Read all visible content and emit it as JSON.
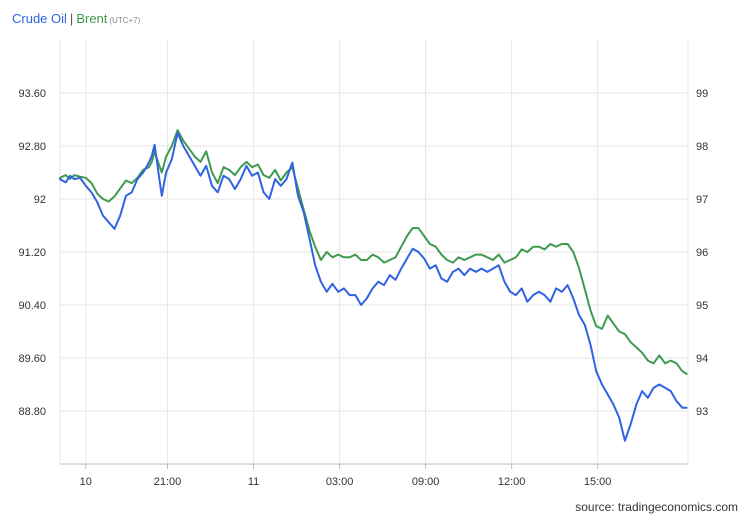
{
  "header": {
    "series1": "Crude Oil",
    "separator": "|",
    "series2": "Brent",
    "timezone": "(UTC+7)"
  },
  "source": "source: tradingeconomics.com",
  "colors": {
    "series1": "#2f63e3",
    "series2": "#3f9a4f",
    "grid": "#e6e6e6",
    "axis": "#bbbbbb"
  },
  "chart_data": {
    "type": "line",
    "grid": true,
    "x_ticks": [
      "10",
      "21:00",
      "11",
      "03:00",
      "09:00",
      "12:00",
      "15:00"
    ],
    "x_tick_positions": [
      1.8,
      7.5,
      13.5,
      19.5,
      25.5,
      31.5,
      37.5
    ],
    "x_range": [
      0,
      43.8
    ],
    "y_left": {
      "ticks": [
        "93.60",
        "92.80",
        "92",
        "91.20",
        "90.40",
        "89.60",
        "88.80"
      ],
      "tick_values": [
        93.6,
        92.8,
        92.0,
        91.2,
        90.4,
        89.6,
        88.8
      ],
      "range": [
        88.0,
        94.4
      ]
    },
    "y_right": {
      "ticks": [
        "99",
        "98",
        "97",
        "96",
        "95",
        "94",
        "93"
      ],
      "tick_values": [
        99,
        98,
        97,
        96,
        95,
        94,
        93
      ],
      "range": [
        92.0,
        100.0
      ]
    },
    "series": [
      {
        "name": "Crude Oil",
        "axis": "left",
        "x": [
          0,
          0.4,
          0.7,
          1.0,
          1.4,
          1.8,
          2.2,
          2.6,
          3.0,
          3.4,
          3.8,
          4.2,
          4.6,
          5.0,
          5.4,
          5.8,
          6.2,
          6.4,
          6.6,
          6.9,
          7.1,
          7.4,
          7.8,
          8.2,
          8.6,
          9.0,
          9.4,
          9.8,
          10.2,
          10.6,
          11.0,
          11.4,
          11.8,
          12.2,
          12.6,
          13.0,
          13.4,
          13.8,
          14.2,
          14.6,
          15.0,
          15.4,
          15.8,
          16.2,
          16.6,
          17.0,
          17.4,
          17.8,
          18.2,
          18.6,
          19.0,
          19.4,
          19.8,
          20.2,
          20.6,
          21.0,
          21.4,
          21.8,
          22.2,
          22.6,
          23.0,
          23.4,
          23.8,
          24.2,
          24.6,
          25.0,
          25.4,
          25.8,
          26.2,
          26.6,
          27.0,
          27.4,
          27.8,
          28.2,
          28.6,
          29.0,
          29.4,
          29.8,
          30.2,
          30.6,
          31.0,
          31.4,
          31.8,
          32.2,
          32.6,
          33.0,
          33.4,
          33.8,
          34.2,
          34.6,
          35.0,
          35.4,
          35.8,
          36.2,
          36.6,
          37.0,
          37.4,
          37.8,
          38.2,
          38.6,
          39.0,
          39.4,
          39.8,
          40.2,
          40.6,
          41.0,
          41.4,
          41.8,
          42.2,
          42.6,
          43.0,
          43.4,
          43.7
        ],
        "y": [
          92.3,
          92.25,
          92.35,
          92.3,
          92.32,
          92.2,
          92.1,
          91.95,
          91.75,
          91.65,
          91.55,
          91.75,
          92.05,
          92.1,
          92.3,
          92.4,
          92.55,
          92.65,
          92.82,
          92.35,
          92.05,
          92.4,
          92.6,
          93.0,
          92.8,
          92.65,
          92.5,
          92.35,
          92.5,
          92.2,
          92.1,
          92.35,
          92.3,
          92.15,
          92.3,
          92.5,
          92.35,
          92.4,
          92.1,
          92.0,
          92.3,
          92.2,
          92.3,
          92.55,
          92.05,
          91.8,
          91.4,
          91.0,
          90.75,
          90.6,
          90.72,
          90.6,
          90.65,
          90.55,
          90.55,
          90.4,
          90.5,
          90.65,
          90.75,
          90.7,
          90.85,
          90.78,
          90.95,
          91.1,
          91.25,
          91.2,
          91.1,
          90.95,
          91.0,
          90.8,
          90.75,
          90.9,
          90.95,
          90.85,
          90.95,
          90.9,
          90.95,
          90.9,
          90.95,
          91.0,
          90.75,
          90.6,
          90.55,
          90.65,
          90.45,
          90.55,
          90.6,
          90.55,
          90.45,
          90.65,
          90.6,
          90.7,
          90.5,
          90.25,
          90.1,
          89.8,
          89.4,
          89.2,
          89.05,
          88.9,
          88.7,
          88.35,
          88.6,
          88.9,
          89.1,
          89.0,
          89.15,
          89.2,
          89.15,
          89.1,
          88.95,
          88.85,
          88.85
        ]
      },
      {
        "name": "Brent",
        "axis": "right",
        "x": [
          0,
          0.4,
          0.7,
          1.0,
          1.4,
          1.8,
          2.2,
          2.6,
          3.0,
          3.4,
          3.8,
          4.2,
          4.6,
          5.0,
          5.4,
          5.8,
          6.2,
          6.4,
          6.6,
          6.9,
          7.1,
          7.4,
          7.8,
          8.2,
          8.6,
          9.0,
          9.4,
          9.8,
          10.2,
          10.6,
          11.0,
          11.4,
          11.8,
          12.2,
          12.6,
          13.0,
          13.4,
          13.8,
          14.2,
          14.6,
          15.0,
          15.4,
          15.8,
          16.2,
          16.6,
          17.0,
          17.4,
          17.8,
          18.2,
          18.6,
          19.0,
          19.4,
          19.8,
          20.2,
          20.6,
          21.0,
          21.4,
          21.8,
          22.2,
          22.6,
          23.0,
          23.4,
          23.8,
          24.2,
          24.6,
          25.0,
          25.4,
          25.8,
          26.2,
          26.6,
          27.0,
          27.4,
          27.8,
          28.2,
          28.6,
          29.0,
          29.4,
          29.8,
          30.2,
          30.6,
          31.0,
          31.4,
          31.8,
          32.2,
          32.6,
          33.0,
          33.4,
          33.8,
          34.2,
          34.6,
          35.0,
          35.4,
          35.8,
          36.2,
          36.6,
          37.0,
          37.4,
          37.8,
          38.2,
          38.6,
          39.0,
          39.4,
          39.8,
          40.2,
          40.6,
          41.0,
          41.4,
          41.8,
          42.2,
          42.6,
          43.0,
          43.4,
          43.7
        ],
        "y": [
          97.4,
          97.45,
          97.38,
          97.45,
          97.42,
          97.4,
          97.3,
          97.1,
          97.0,
          96.95,
          97.05,
          97.2,
          97.35,
          97.3,
          97.4,
          97.55,
          97.6,
          97.7,
          97.9,
          97.65,
          97.5,
          97.8,
          98.0,
          98.3,
          98.1,
          97.95,
          97.8,
          97.7,
          97.9,
          97.5,
          97.3,
          97.6,
          97.55,
          97.45,
          97.6,
          97.7,
          97.6,
          97.65,
          97.45,
          97.4,
          97.55,
          97.35,
          97.5,
          97.6,
          97.2,
          96.8,
          96.4,
          96.1,
          95.85,
          96.0,
          95.9,
          95.95,
          95.9,
          95.9,
          95.95,
          95.85,
          95.85,
          95.95,
          95.9,
          95.8,
          95.85,
          95.9,
          96.1,
          96.3,
          96.45,
          96.45,
          96.3,
          96.15,
          96.1,
          95.95,
          95.85,
          95.8,
          95.9,
          95.85,
          95.9,
          95.95,
          95.95,
          95.9,
          95.85,
          95.95,
          95.8,
          95.85,
          95.9,
          96.05,
          96.0,
          96.1,
          96.1,
          96.05,
          96.15,
          96.1,
          96.15,
          96.15,
          96.0,
          95.7,
          95.3,
          94.9,
          94.6,
          94.55,
          94.8,
          94.65,
          94.5,
          94.45,
          94.3,
          94.2,
          94.1,
          93.95,
          93.9,
          94.05,
          93.9,
          93.95,
          93.9,
          93.75,
          93.7
        ]
      }
    ]
  }
}
